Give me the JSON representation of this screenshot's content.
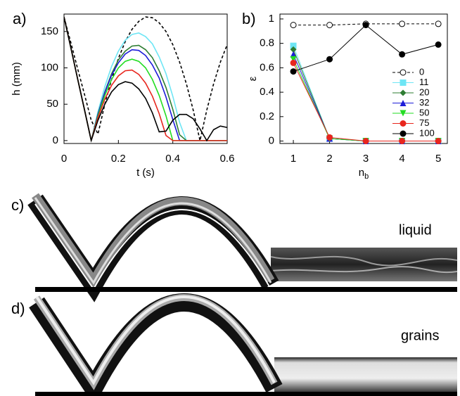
{
  "chart_data": [
    {
      "type": "line",
      "panel_label": "a)",
      "x_label": "t (s)",
      "y_label": "h (mm)",
      "xlim": [
        0,
        0.6
      ],
      "xticks": [
        0,
        0.2,
        0.4,
        0.6
      ],
      "ylim": [
        -4,
        174
      ],
      "yticks": [
        0,
        50,
        100,
        150
      ],
      "x": [
        0,
        0.025,
        0.05,
        0.075,
        0.1,
        0.125,
        0.15,
        0.175,
        0.2,
        0.225,
        0.25,
        0.275,
        0.3,
        0.325,
        0.35,
        0.375,
        0.4,
        0.425,
        0.45,
        0.475,
        0.5,
        0.525,
        0.55,
        0.575,
        0.6
      ],
      "series": [
        {
          "color": "#000000",
          "line_style": "dashed",
          "values": [
            170,
            135,
            99,
            64,
            28,
            9,
            50,
            84,
            113,
            136,
            153,
            164,
            170,
            169,
            162,
            150,
            132,
            108,
            78,
            42,
            0,
            42,
            78,
            108,
            132
          ]
        },
        {
          "color": "#6ee6f5",
          "values": [
            170,
            128,
            85,
            43,
            0,
            40,
            74,
            102,
            123,
            138,
            146,
            148,
            143,
            133,
            115,
            92,
            61,
            25,
            0,
            0,
            0,
            0,
            0,
            0,
            0
          ]
        },
        {
          "color": "#2e7d32",
          "values": [
            170,
            128,
            85,
            43,
            0,
            37,
            67,
            92,
            111,
            123,
            130,
            131,
            125,
            114,
            96,
            73,
            43,
            8,
            0,
            0,
            0,
            0,
            0,
            0,
            0
          ]
        },
        {
          "color": "#1c1cd8",
          "values": [
            170,
            128,
            85,
            43,
            0,
            36,
            66,
            90,
            107,
            119,
            125,
            124,
            117,
            104,
            86,
            60,
            29,
            0,
            0,
            0,
            0,
            0,
            0,
            0,
            0
          ]
        },
        {
          "color": "#22dd22",
          "values": [
            170,
            128,
            85,
            43,
            0,
            34,
            62,
            84,
            100,
            109,
            112,
            109,
            100,
            84,
            62,
            34,
            0,
            0,
            0,
            0,
            0,
            0,
            0,
            0,
            0
          ]
        },
        {
          "color": "#e8261e",
          "values": [
            170,
            128,
            85,
            43,
            0,
            32,
            57,
            76,
            89,
            96,
            97,
            91,
            79,
            61,
            37,
            7,
            0,
            0,
            0,
            0,
            0,
            0,
            0,
            0,
            0
          ]
        },
        {
          "color": "#000000",
          "values": [
            170,
            128,
            85,
            43,
            0,
            28,
            50,
            67,
            77,
            81,
            79,
            71,
            58,
            38,
            12,
            13,
            28,
            36,
            36,
            30,
            16,
            0,
            15,
            20,
            18
          ]
        }
      ]
    },
    {
      "type": "line",
      "panel_label": "b)",
      "x_label": "n",
      "x_label_sub": "b",
      "y_label": "ε",
      "xlim": [
        0.63,
        5.25
      ],
      "xticks": [
        1,
        2,
        3,
        4,
        5
      ],
      "ylim": [
        -0.02,
        1.04
      ],
      "yticks": [
        0,
        0.2,
        0.4,
        0.6,
        0.8,
        1
      ],
      "legend": "lower right",
      "x": [
        1,
        2,
        3,
        4,
        5
      ],
      "series": [
        {
          "name": "0",
          "color": "#000000",
          "line_style": "dashed",
          "marker": "circle-open",
          "values": [
            0.95,
            0.95,
            0.96,
            0.96,
            0.96
          ]
        },
        {
          "name": "11",
          "color": "#6ee6f5",
          "marker": "square",
          "values": [
            0.78,
            0.02,
            0,
            0,
            0
          ]
        },
        {
          "name": "20",
          "color": "#2e7d32",
          "marker": "diamond",
          "values": [
            0.75,
            0.02,
            0,
            0,
            0
          ]
        },
        {
          "name": "32",
          "color": "#1c1cd8",
          "marker": "triangle",
          "values": [
            0.71,
            0.02,
            0,
            0,
            0
          ]
        },
        {
          "name": "50",
          "color": "#22dd22",
          "marker": "triangle-down",
          "values": [
            0.67,
            0.02,
            0,
            0,
            0
          ]
        },
        {
          "name": "75",
          "color": "#e8261e",
          "marker": "circle",
          "values": [
            0.64,
            0.03,
            0,
            0,
            0
          ]
        },
        {
          "name": "100",
          "color": "#000000",
          "marker": "circle",
          "values": [
            0.57,
            0.67,
            0.95,
            0.71,
            0.79
          ]
        }
      ]
    }
  ],
  "panels": [
    {
      "label": "c)",
      "caption": "liquid"
    },
    {
      "label": "d)",
      "caption": "grains"
    }
  ]
}
